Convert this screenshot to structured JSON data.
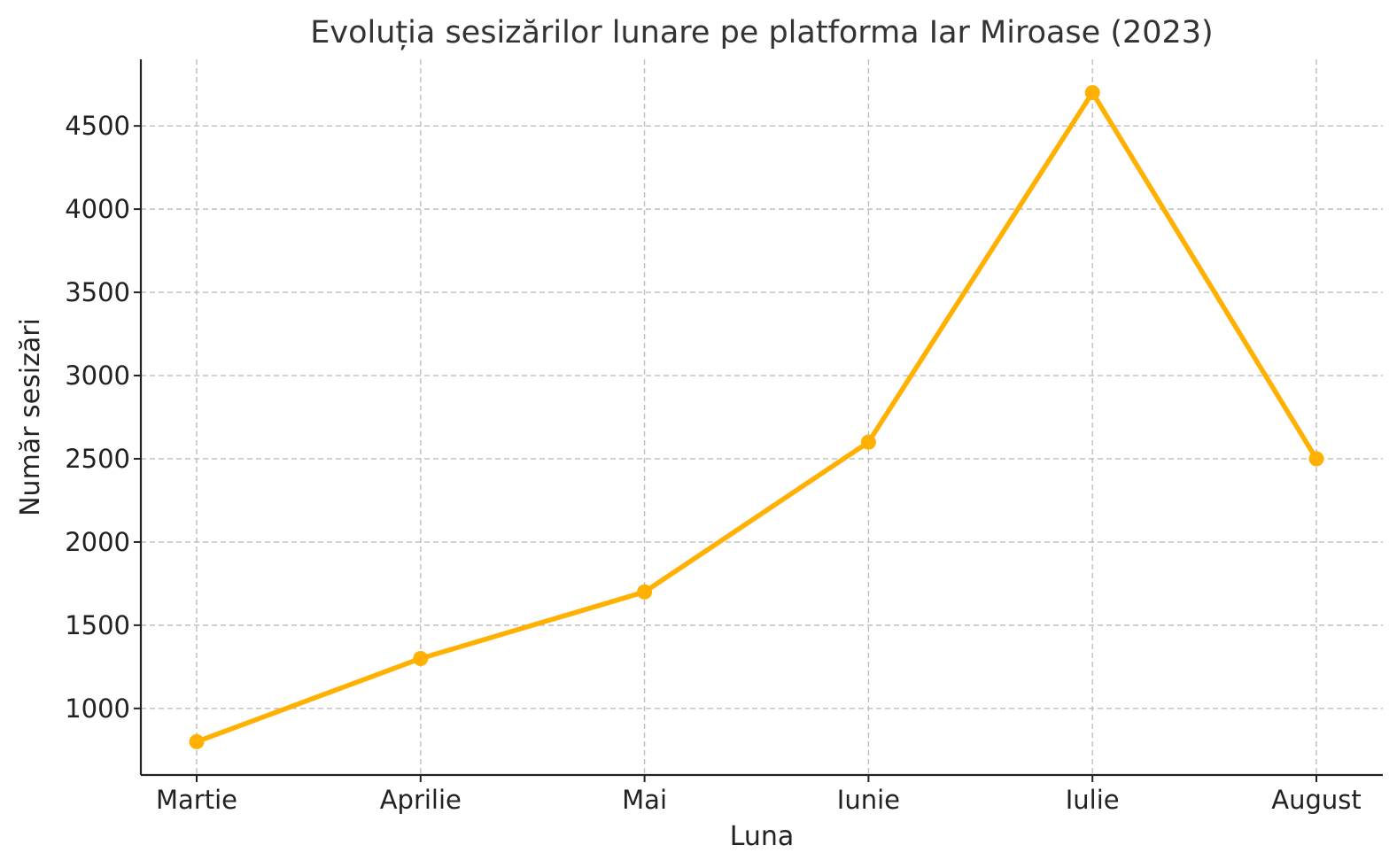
{
  "chart_data": {
    "type": "line",
    "title": "Evoluția sesizărilor lunare pe platforma Iar Miroase (2023)",
    "xlabel": "Luna",
    "ylabel": "Număr sesizări",
    "categories": [
      "Martie",
      "Aprilie",
      "Mai",
      "Iunie",
      "Iulie",
      "August"
    ],
    "series": [
      {
        "values": [
          800,
          1300,
          1700,
          2600,
          4700,
          2500
        ],
        "color": "#FFB000"
      }
    ],
    "yticks": [
      1000,
      1500,
      2000,
      2500,
      3000,
      3500,
      4000,
      4500
    ],
    "ylim": [
      600,
      4900
    ],
    "grid": true,
    "legend": "none"
  }
}
